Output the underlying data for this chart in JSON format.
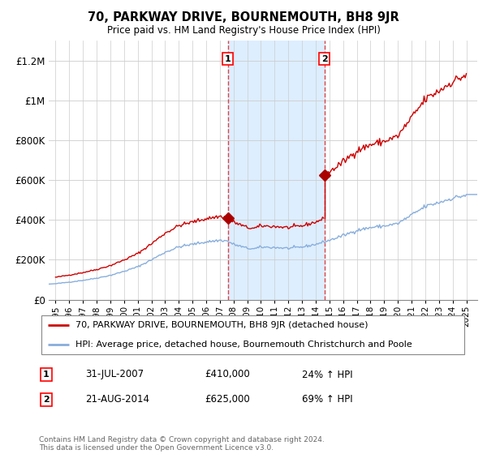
{
  "title": "70, PARKWAY DRIVE, BOURNEMOUTH, BH8 9JR",
  "subtitle": "Price paid vs. HM Land Registry's House Price Index (HPI)",
  "legend_label_property": "70, PARKWAY DRIVE, BOURNEMOUTH, BH8 9JR (detached house)",
  "legend_label_hpi": "HPI: Average price, detached house, Bournemouth Christchurch and Poole",
  "transaction1_date": "31-JUL-2007",
  "transaction1_price": "£410,000",
  "transaction1_hpi": "24% ↑ HPI",
  "transaction1_year": 2007.58,
  "transaction2_date": "21-AUG-2014",
  "transaction2_price": "£625,000",
  "transaction2_hpi": "69% ↑ HPI",
  "transaction2_year": 2014.64,
  "sale1_value": 410000,
  "sale2_value": 625000,
  "property_color": "#cc0000",
  "hpi_color": "#88aedd",
  "vline_color": "#dd4444",
  "sale_dot_color": "#aa0000",
  "shade_color": "#ddeeff",
  "footer": "Contains HM Land Registry data © Crown copyright and database right 2024.\nThis data is licensed under the Open Government Licence v3.0.",
  "ylim": [
    0,
    1300000
  ],
  "yticks": [
    0,
    200000,
    400000,
    600000,
    800000,
    1000000,
    1200000
  ],
  "ytick_labels": [
    "£0",
    "£200K",
    "£400K",
    "£600K",
    "£800K",
    "£1M",
    "£1.2M"
  ],
  "xlim_start": 1994.5,
  "xlim_end": 2025.8
}
